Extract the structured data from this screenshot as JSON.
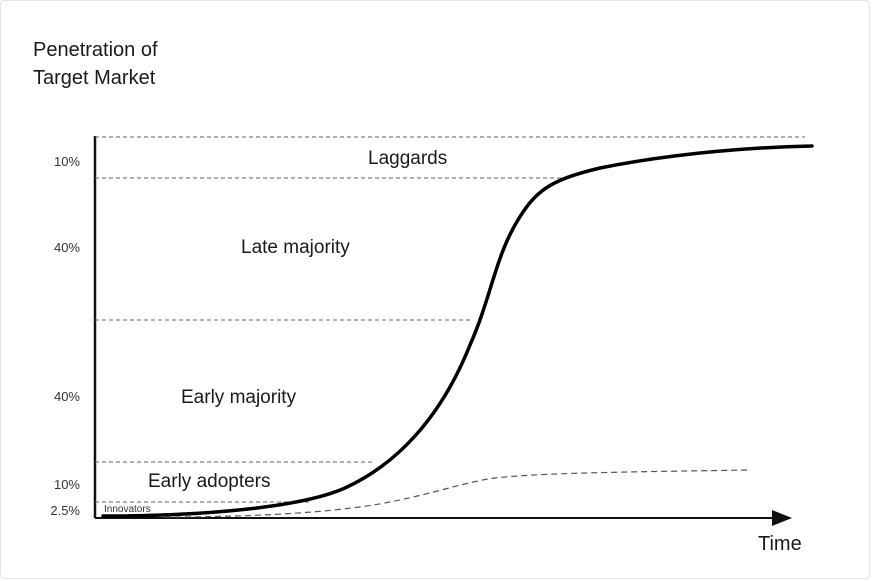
{
  "yaxis_label_lines": [
    "Penetration of",
    "Target Market"
  ],
  "xaxis_label": "Time",
  "segments": [
    {
      "name": "Innovators",
      "percent": "2.5%",
      "label": "Innovators"
    },
    {
      "name": "Early adopters",
      "percent": "10%",
      "label": "Early adopters"
    },
    {
      "name": "Early majority",
      "percent": "40%",
      "label": "Early majority"
    },
    {
      "name": "Late majority",
      "percent": "40%",
      "label": "Late majority"
    },
    {
      "name": "Laggards",
      "percent": "10%",
      "label": "Laggards"
    }
  ],
  "colors": {
    "curve": "#000000",
    "dash": "#555555",
    "axis": "#111111"
  }
}
